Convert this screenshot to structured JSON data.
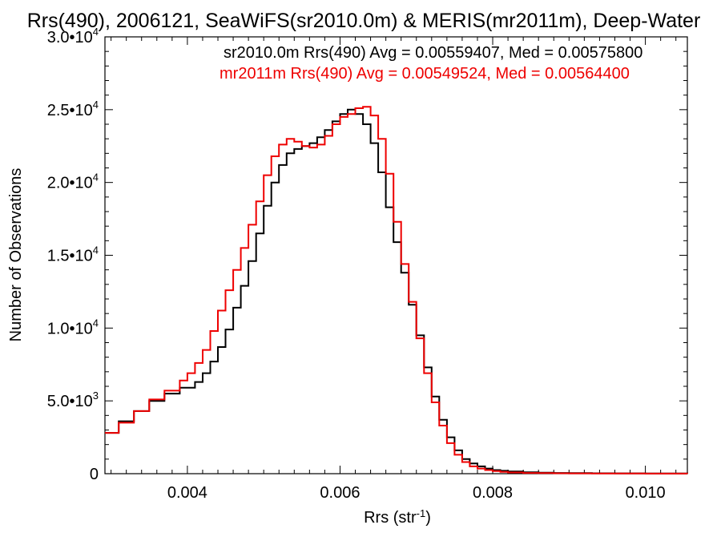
{
  "chart_data": {
    "type": "line",
    "title": "Rrs(490), 2006121, SeaWiFS(sr2010.0m) & MERIS(mr2011m), Deep-Water",
    "xlabel_main": "Rrs (str",
    "xlabel_sup": "-1",
    "xlabel_close": ")",
    "ylabel": "Number of Observations",
    "xlim": [
      0.00292,
      0.01055
    ],
    "ylim": [
      0,
      30000
    ],
    "x_ticks": [
      {
        "value": 0.004,
        "label": "0.004"
      },
      {
        "value": 0.006,
        "label": "0.006"
      },
      {
        "value": 0.008,
        "label": "0.008"
      },
      {
        "value": 0.01,
        "label": "0.010"
      }
    ],
    "y_ticks": [
      {
        "value": 0,
        "label": "0",
        "exp": ""
      },
      {
        "value": 5000,
        "label": "5.0•10",
        "exp": "3"
      },
      {
        "value": 10000,
        "label": "1.0•10",
        "exp": "4"
      },
      {
        "value": 15000,
        "label": "1.5•10",
        "exp": "4"
      },
      {
        "value": 20000,
        "label": "2.0•10",
        "exp": "4"
      },
      {
        "value": 25000,
        "label": "2.5•10",
        "exp": "4"
      },
      {
        "value": 30000,
        "label": "3.0•10",
        "exp": "4"
      }
    ],
    "annotations": [
      {
        "text": "sr2010.0m Rrs(490) Avg = 0.00559407, Med = 0.00575800",
        "color": "#000000"
      },
      {
        "text": "mr2011m Rrs(490) Avg = 0.00549524, Med = 0.00564400",
        "color": "#ee0000"
      }
    ],
    "series": [
      {
        "color": "#000000",
        "x": [
          0.00292,
          0.0031,
          0.0033,
          0.0035,
          0.0037,
          0.0039,
          0.0041,
          0.0042,
          0.0043,
          0.0044,
          0.0045,
          0.0046,
          0.0047,
          0.0048,
          0.0049,
          0.005,
          0.0051,
          0.0052,
          0.0053,
          0.0054,
          0.0055,
          0.0056,
          0.0057,
          0.0058,
          0.0059,
          0.006,
          0.0061,
          0.0062,
          0.0063,
          0.0064,
          0.0065,
          0.0066,
          0.0067,
          0.0068,
          0.0069,
          0.007,
          0.0071,
          0.0072,
          0.0073,
          0.0074,
          0.0075,
          0.0076,
          0.0077,
          0.0078,
          0.0079,
          0.008,
          0.0081,
          0.0082,
          0.0084,
          0.0086,
          0.0088,
          0.009,
          0.0093,
          0.0096,
          0.01,
          0.01055
        ],
        "y": [
          2800,
          3600,
          4300,
          5000,
          5500,
          5900,
          6300,
          6900,
          7700,
          8700,
          9900,
          11400,
          12900,
          14600,
          16500,
          18400,
          20000,
          21200,
          22000,
          22300,
          22500,
          22700,
          23100,
          23600,
          24200,
          24700,
          25000,
          24700,
          24000,
          22700,
          20700,
          18300,
          15900,
          13800,
          11600,
          9500,
          7300,
          5300,
          3700,
          2500,
          1600,
          1000,
          700,
          500,
          350,
          250,
          200,
          150,
          100,
          70,
          50,
          40,
          30,
          20,
          10,
          0
        ]
      },
      {
        "color": "#ee0000",
        "x": [
          0.00292,
          0.0031,
          0.0033,
          0.0035,
          0.0037,
          0.0039,
          0.004,
          0.0041,
          0.0042,
          0.0043,
          0.0044,
          0.0045,
          0.0046,
          0.0047,
          0.0048,
          0.0049,
          0.005,
          0.0051,
          0.0052,
          0.0053,
          0.0054,
          0.0055,
          0.0056,
          0.0057,
          0.0058,
          0.0059,
          0.006,
          0.0061,
          0.0062,
          0.0063,
          0.0064,
          0.0065,
          0.0066,
          0.0067,
          0.0068,
          0.0069,
          0.007,
          0.0071,
          0.0072,
          0.0073,
          0.0074,
          0.0075,
          0.0076,
          0.0077,
          0.0078,
          0.0079,
          0.008,
          0.0081,
          0.0082,
          0.0084,
          0.0086,
          0.0088,
          0.009,
          0.0093,
          0.0096,
          0.01,
          0.01055
        ],
        "y": [
          2800,
          3500,
          4300,
          5100,
          5700,
          6400,
          6900,
          7600,
          8500,
          9800,
          11200,
          12600,
          14000,
          15500,
          17100,
          18700,
          20500,
          21800,
          22600,
          23000,
          22800,
          22500,
          22400,
          22600,
          23200,
          24000,
          24500,
          24700,
          25100,
          25200,
          24600,
          23000,
          20600,
          17300,
          14400,
          11800,
          9300,
          6900,
          4900,
          3300,
          2100,
          1300,
          800,
          500,
          350,
          250,
          180,
          120,
          80,
          50,
          40,
          30,
          20,
          15,
          10,
          5,
          0
        ]
      }
    ]
  }
}
